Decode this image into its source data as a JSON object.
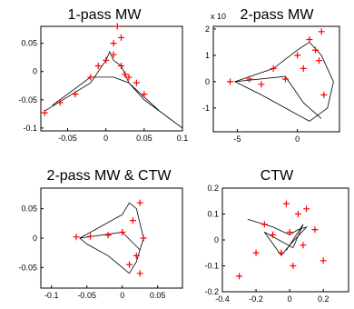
{
  "chart_data": [
    {
      "type": "scatter",
      "title": "1-pass MW",
      "xlim": [
        -0.085,
        0.1
      ],
      "ylim": [
        -0.105,
        0.08
      ],
      "xticks": [
        -0.05,
        0,
        0.05,
        0.1
      ],
      "xtick_labels": [
        "-0.05",
        "0",
        "0.05",
        "0.1"
      ],
      "yticks": [
        -0.1,
        -0.05,
        0,
        0.05
      ],
      "ytick_labels": [
        "-0.1",
        "-0.05",
        "0",
        "0.05"
      ],
      "exponent_label": "",
      "series": [
        {
          "color": "#000000",
          "marker": "line",
          "x": [
            -0.08,
            -0.05,
            -0.02,
            0,
            0.005,
            0.01,
            0.02,
            0.03,
            0.05,
            0.08,
            0.1,
            0.07,
            0.03,
            0.01,
            -0.02,
            -0.05,
            -0.07
          ],
          "y": [
            -0.07,
            -0.045,
            -0.02,
            0.02,
            0.035,
            0.02,
            0.01,
            -0.02,
            -0.05,
            -0.08,
            -0.1,
            -0.07,
            -0.02,
            -0.01,
            -0.01,
            -0.04,
            -0.06
          ]
        },
        {
          "color": "#ff0000",
          "marker": "plus",
          "x": [
            -0.08,
            -0.06,
            -0.04,
            -0.02,
            0,
            0.01,
            0.015,
            0.02,
            0.03,
            0.04,
            0.05,
            0.01,
            0.02,
            -0.01,
            0.025
          ],
          "y": [
            -0.073,
            -0.055,
            -0.04,
            -0.01,
            0.02,
            0.03,
            0.08,
            0.01,
            -0.01,
            -0.02,
            -0.04,
            0.05,
            0.06,
            0.01,
            -0.005
          ]
        }
      ]
    },
    {
      "type": "scatter",
      "title": "2-pass MW",
      "xlim": [
        -7,
        3.5
      ],
      "ylim": [
        -1.9,
        2.1
      ],
      "xticks": [
        -5,
        0
      ],
      "xtick_labels": [
        "-5",
        "0"
      ],
      "yticks": [
        -1,
        0,
        1,
        2
      ],
      "ytick_labels": [
        "-1",
        "0",
        "1",
        "2"
      ],
      "exponent_label": "x 10",
      "series": [
        {
          "color": "#000000",
          "marker": "line",
          "x": [
            -5.2,
            -2,
            0,
            1,
            2,
            3,
            2.5,
            1,
            -1,
            -3,
            -5.2,
            -1,
            0.5,
            2
          ],
          "y": [
            0,
            0.5,
            1.2,
            1.5,
            1,
            0,
            -1,
            -1.5,
            -1,
            -0.5,
            0,
            0.2,
            -0.8,
            -1.4
          ]
        },
        {
          "color": "#ff0000",
          "marker": "plus",
          "x": [
            -5.6,
            -4,
            -2,
            0,
            1,
            2,
            1.5,
            0.5,
            -1,
            -3,
            2.2,
            1.8
          ],
          "y": [
            0,
            0.1,
            0.5,
            1,
            1.6,
            1.9,
            1.2,
            0.5,
            0.1,
            -0.1,
            -0.5,
            0.8
          ]
        }
      ]
    },
    {
      "type": "scatter",
      "title": "2-pass MW & CTW",
      "xlim": [
        -0.115,
        0.085
      ],
      "ylim": [
        -0.085,
        0.085
      ],
      "xticks": [
        -0.1,
        -0.05,
        0,
        0.05
      ],
      "xtick_labels": [
        "-0.1",
        "-0.05",
        "0",
        "0.05"
      ],
      "yticks": [
        -0.05,
        0,
        0.05
      ],
      "ytick_labels": [
        "-0.05",
        "0",
        "0.05"
      ],
      "exponent_label": "",
      "series": [
        {
          "color": "#000000",
          "marker": "line",
          "x": [
            -0.06,
            -0.03,
            0,
            0.01,
            0.02,
            0.03,
            0.02,
            0.01,
            -0.02,
            -0.05,
            -0.06,
            0,
            0.025
          ],
          "y": [
            0,
            0.02,
            0.04,
            0.06,
            0.05,
            0,
            -0.04,
            -0.06,
            -0.03,
            -0.01,
            0,
            0.01,
            -0.02
          ]
        },
        {
          "color": "#ff0000",
          "marker": "plus",
          "x": [
            -0.065,
            -0.045,
            -0.02,
            0,
            0.015,
            0.025,
            0.03,
            0.02,
            0.01,
            0.025
          ],
          "y": [
            0.002,
            0.003,
            0.005,
            0.01,
            0.03,
            0.06,
            0,
            -0.03,
            -0.045,
            -0.06
          ]
        }
      ]
    },
    {
      "type": "scatter",
      "title": "CTW",
      "xlim": [
        -0.4,
        0.35
      ],
      "ylim": [
        -0.2,
        0.2
      ],
      "xticks": [
        -0.4,
        -0.2,
        0,
        0.2
      ],
      "xtick_labels": [
        "-0.4",
        "-0.2",
        "0",
        "0.2"
      ],
      "yticks": [
        -0.2,
        -0.1,
        0,
        0.1,
        0.2
      ],
      "ytick_labels": [
        "-0.2",
        "-0.1",
        "0",
        "0.1",
        "0.2"
      ],
      "exponent_label": "",
      "series": [
        {
          "color": "#000000",
          "marker": "line",
          "x": [
            -0.25,
            -0.1,
            0,
            0.05,
            0.1,
            0,
            -0.05,
            -0.15,
            0.02,
            0.08,
            -0.02
          ],
          "y": [
            0.08,
            0.05,
            0.02,
            0.04,
            0.05,
            -0.02,
            -0.06,
            0.03,
            -0.03,
            0.06,
            -0.04
          ]
        },
        {
          "color": "#ff0000",
          "marker": "plus",
          "x": [
            -0.3,
            -0.2,
            -0.1,
            0,
            0.05,
            0.1,
            0.15,
            -0.05,
            0.02,
            0.2,
            -0.15,
            0.08,
            -0.02
          ],
          "y": [
            -0.14,
            -0.05,
            0.02,
            0.03,
            0.1,
            0.12,
            0.04,
            -0.05,
            -0.1,
            -0.08,
            0.06,
            -0.02,
            0.14
          ]
        }
      ]
    }
  ]
}
